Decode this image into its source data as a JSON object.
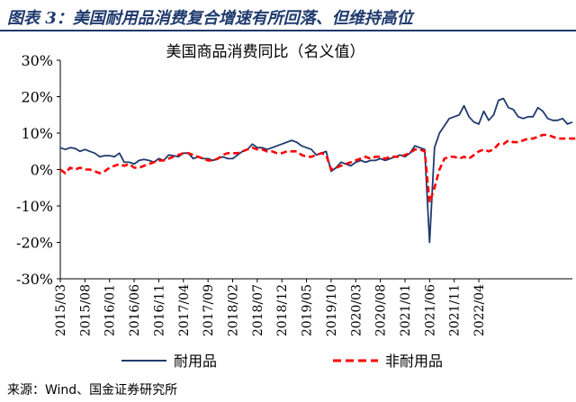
{
  "header": {
    "title": "图表 3：美国耐用品消费复合增速有所回落、但维持高位"
  },
  "source": "来源：Wind、国金证券研究所",
  "chart_data": {
    "type": "line",
    "title": "美国商品消费同比（名义值）",
    "xlabel": "",
    "ylabel": "",
    "ylim": [
      -30,
      30
    ],
    "y_ticks": [
      "30%",
      "20%",
      "10%",
      "0%",
      "-10%",
      "-20%",
      "-30%"
    ],
    "x_ticks": [
      "2015/03",
      "2015/08",
      "2016/01",
      "2016/06",
      "2016/11",
      "2017/04",
      "2017/09",
      "2018/02",
      "2018/07",
      "2018/12",
      "2019/05",
      "2019/10",
      "2020/03",
      "2020/08",
      "2021/01",
      "2021/06",
      "2021/11",
      "2022/04"
    ],
    "grid": false,
    "legend_position": "bottom",
    "x_start": "2015/03",
    "x_end": "2022/05",
    "series": [
      {
        "name": "耐用品",
        "color": "#1f3a6e",
        "style": "solid",
        "values": [
          6,
          5.5,
          6,
          5.8,
          5,
          5.5,
          5,
          4.5,
          3.5,
          3.8,
          3.8,
          3.5,
          4.5,
          2,
          2,
          1.5,
          2.5,
          2.8,
          2.5,
          2,
          3,
          2.5,
          4,
          3.8,
          3.5,
          4.5,
          4.5,
          3,
          3.5,
          3,
          3,
          2.5,
          3,
          3.5,
          3,
          3,
          4,
          5,
          5.5,
          7,
          6,
          6,
          5.5,
          6,
          6.5,
          7,
          7.5,
          8,
          7.5,
          6.5,
          6,
          5.5,
          4,
          4.5,
          5,
          -0.5,
          0.5,
          2,
          1.5,
          1,
          2,
          2.5,
          2,
          2.5,
          2.5,
          3,
          2.5,
          3,
          3.5,
          4,
          3.5,
          4.5,
          6.5,
          6,
          5.5,
          -20,
          6,
          10,
          12,
          14,
          14.5,
          15,
          17.5,
          14.5,
          13,
          12.5,
          16,
          13.5,
          15,
          19,
          19.5,
          17,
          16.5,
          14.5,
          14,
          14.5,
          14.5,
          17,
          16,
          14,
          13.5,
          13.5,
          14,
          12.5,
          13
        ]
      },
      {
        "name": "非耐用品",
        "color": "#ff0000",
        "style": "dashed",
        "values": [
          0,
          -1,
          0.5,
          0,
          0.5,
          0,
          0,
          -0.5,
          -1,
          -0.5,
          0.5,
          1,
          1.5,
          1,
          1.5,
          0.5,
          0.5,
          1,
          1.5,
          2,
          2.5,
          2.5,
          3,
          3.5,
          4,
          4.5,
          4.5,
          4,
          3.5,
          3,
          2.5,
          2.5,
          3,
          4,
          4.5,
          4.5,
          4.5,
          5,
          5.5,
          6,
          5.5,
          5.5,
          5,
          5,
          4.5,
          4.5,
          5,
          5,
          5,
          4,
          3.5,
          3.5,
          4,
          4.5,
          4,
          0,
          0.5,
          1,
          1.5,
          2,
          2.5,
          3,
          3.5,
          3,
          3.5,
          3.5,
          3,
          3.5,
          3.5,
          3.5,
          4,
          4.5,
          5.5,
          5.5,
          5,
          -9,
          -5,
          0,
          3,
          3.5,
          3.5,
          3,
          3.5,
          3,
          4,
          5,
          5.5,
          5,
          5.5,
          7,
          7,
          8,
          7.5,
          7.5,
          8,
          8.5,
          8.5,
          9,
          9.5,
          9.5,
          9,
          8.5,
          8.5,
          8.5,
          8.5,
          8.5
        ]
      }
    ]
  }
}
